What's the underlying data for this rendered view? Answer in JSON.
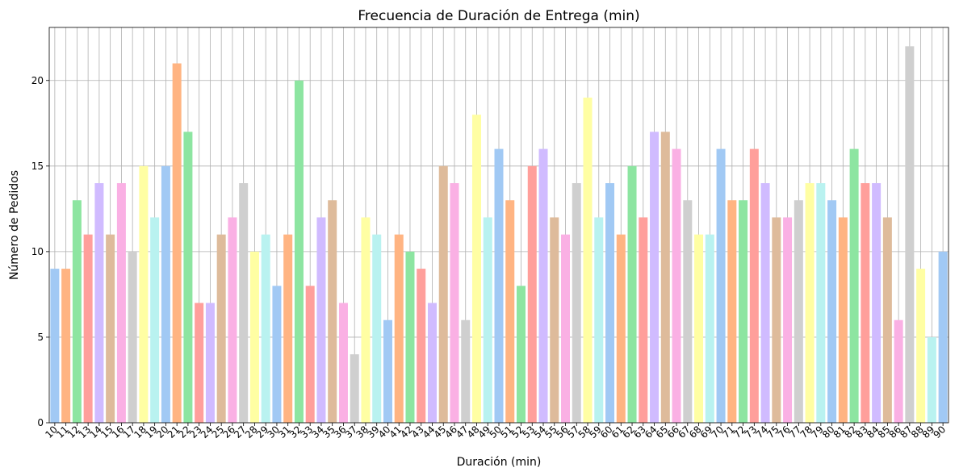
{
  "chart_data": {
    "type": "bar",
    "title": "Frecuencia de Duración de Entrega (min)",
    "xlabel": "Duración (min)",
    "ylabel": "Número de Pedidos",
    "categories": [
      "10",
      "11",
      "12",
      "13",
      "14",
      "15",
      "16",
      "17",
      "18",
      "19",
      "20",
      "21",
      "22",
      "23",
      "24",
      "25",
      "26",
      "27",
      "28",
      "29",
      "30",
      "31",
      "32",
      "33",
      "34",
      "35",
      "36",
      "37",
      "38",
      "39",
      "40",
      "41",
      "42",
      "43",
      "44",
      "45",
      "46",
      "47",
      "48",
      "49",
      "50",
      "51",
      "52",
      "53",
      "54",
      "55",
      "56",
      "57",
      "58",
      "59",
      "60",
      "61",
      "62",
      "63",
      "64",
      "65",
      "66",
      "67",
      "68",
      "69",
      "70",
      "71",
      "72",
      "73",
      "74",
      "75",
      "76",
      "77",
      "78",
      "79",
      "80",
      "81",
      "82",
      "83",
      "84",
      "85",
      "86",
      "87",
      "88",
      "89",
      "90"
    ],
    "values": [
      9,
      9,
      13,
      11,
      14,
      11,
      14,
      10,
      15,
      12,
      15,
      21,
      17,
      7,
      7,
      11,
      12,
      14,
      10,
      11,
      8,
      11,
      20,
      8,
      12,
      13,
      7,
      4,
      12,
      11,
      6,
      11,
      10,
      9,
      7,
      15,
      14,
      6,
      18,
      12,
      16,
      13,
      8,
      15,
      16,
      12,
      11,
      14,
      19,
      12,
      14,
      11,
      15,
      12,
      17,
      17,
      16,
      13,
      11,
      11,
      16,
      13,
      13,
      16,
      14,
      12,
      12,
      13,
      14,
      14,
      13,
      12,
      16,
      14,
      14,
      12,
      6,
      22,
      9,
      5,
      10
    ],
    "ylim": [
      0,
      23.1
    ],
    "yticks": [
      0,
      5,
      10,
      15,
      20
    ],
    "grid": true,
    "palette": [
      "#a1c9f4",
      "#ffb482",
      "#8de5a1",
      "#ff9f9b",
      "#d0bbff",
      "#debb9b",
      "#fab0e4",
      "#cfcfcf",
      "#fffea3",
      "#b9f2f0"
    ]
  }
}
